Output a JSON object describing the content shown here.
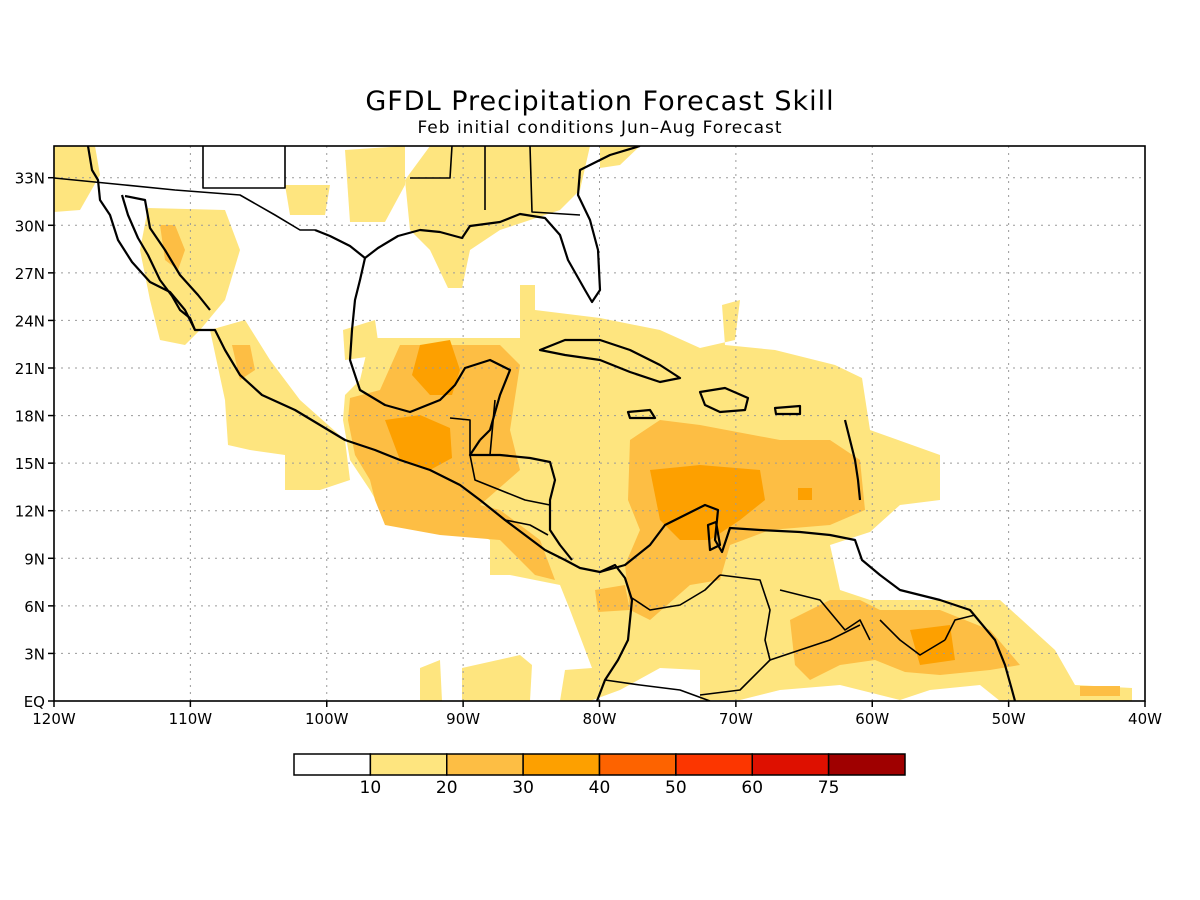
{
  "map": {
    "title": "GFDL Precipitation Forecast Skill",
    "subtitle": "Feb initial conditions  Jun–Aug Forecast",
    "lon_range": [
      -120,
      -40
    ],
    "lat_range": [
      0,
      35
    ],
    "lon_tick_labels": [
      "120W",
      "110W",
      "100W",
      "90W",
      "80W",
      "70W",
      "60W",
      "50W",
      "40W"
    ],
    "lat_tick_labels": [
      "EQ",
      "3N",
      "6N",
      "9N",
      "12N",
      "15N",
      "18N",
      "21N",
      "24N",
      "27N",
      "30N",
      "33N"
    ],
    "grid": true,
    "colorbar": {
      "labels": [
        "10",
        "20",
        "30",
        "40",
        "50",
        "60",
        "75"
      ],
      "colors": [
        "#ffffff",
        "#fee57f",
        "#fdbe44",
        "#fda000",
        "#fd6300",
        "#fc3600",
        "#de1000",
        "#9f0000"
      ]
    }
  }
}
